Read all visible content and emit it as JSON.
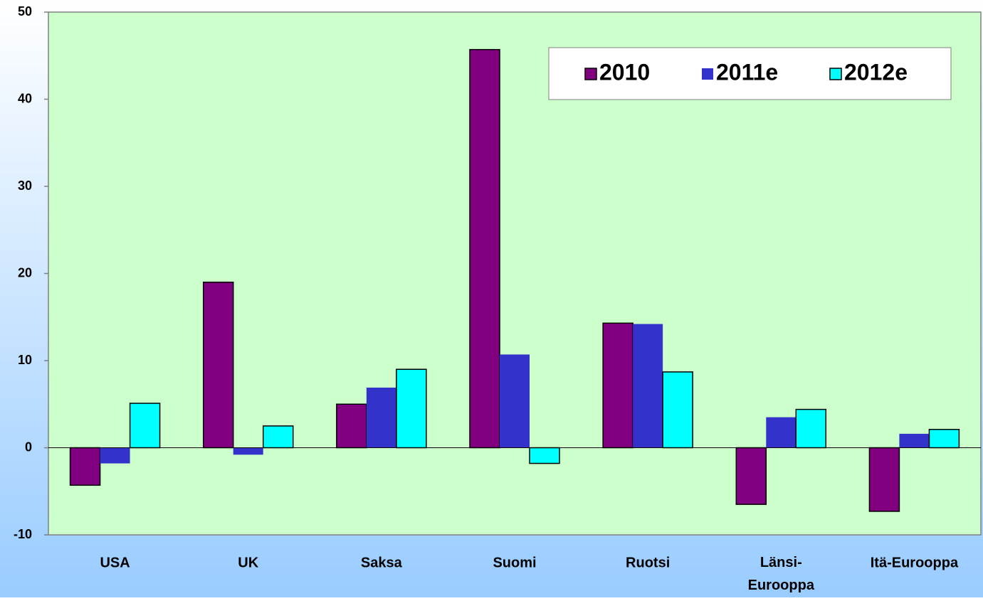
{
  "chart_data": {
    "type": "bar",
    "categories": [
      "USA",
      "UK",
      "Saksa",
      "Suomi",
      "Ruotsi",
      "Länsi-Eurooppa",
      "Itä-Eurooppa"
    ],
    "series": [
      {
        "name": "2010",
        "color": "#800080",
        "values": [
          -4.3,
          19.0,
          5.0,
          45.7,
          14.3,
          -6.5,
          -7.3
        ]
      },
      {
        "name": "2011e",
        "color": "#3333cc",
        "values": [
          -1.8,
          -0.8,
          6.9,
          10.7,
          14.2,
          3.5,
          1.6
        ]
      },
      {
        "name": "2012e",
        "color": "#00ffff",
        "values": [
          5.1,
          2.5,
          9.0,
          -1.8,
          8.7,
          4.4,
          2.1
        ]
      }
    ],
    "ylim": [
      -10,
      50
    ],
    "yticks": [
      -10,
      0,
      10,
      20,
      30,
      40,
      50
    ],
    "legend": "top-right"
  }
}
